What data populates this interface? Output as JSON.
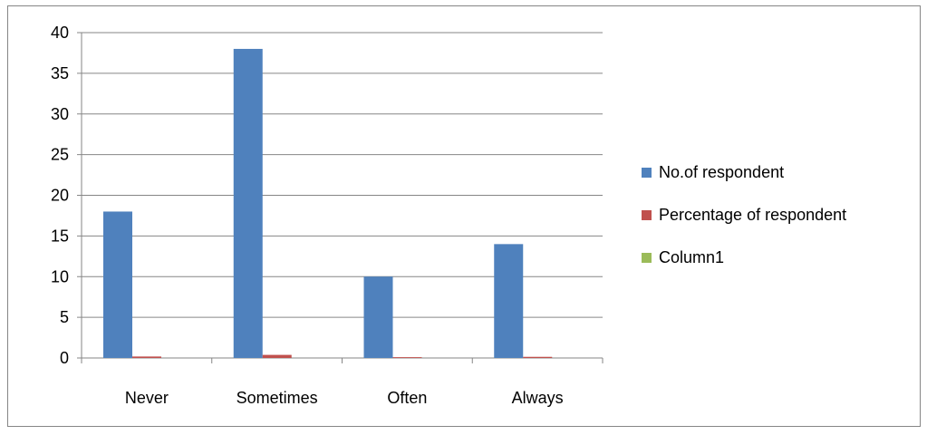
{
  "chart_data": {
    "type": "bar",
    "categories": [
      "Never",
      "Sometimes",
      "Often",
      "Always"
    ],
    "series": [
      {
        "name": "No.of respondent",
        "values": [
          18,
          38,
          10,
          14
        ],
        "color": "#4F81BD"
      },
      {
        "name": "Percentage of respondent",
        "values": [
          0.18,
          0.38,
          0.1,
          0.14
        ],
        "color": "#C0504D"
      },
      {
        "name": "Column1",
        "values": [
          0,
          0,
          0,
          0
        ],
        "color": "#9BBB59"
      }
    ],
    "ylim": [
      0,
      40
    ],
    "yticks": [
      0,
      5,
      10,
      15,
      20,
      25,
      30,
      35,
      40
    ],
    "grid": true,
    "legend_position": "right",
    "title": "",
    "xlabel": "",
    "ylabel": ""
  }
}
